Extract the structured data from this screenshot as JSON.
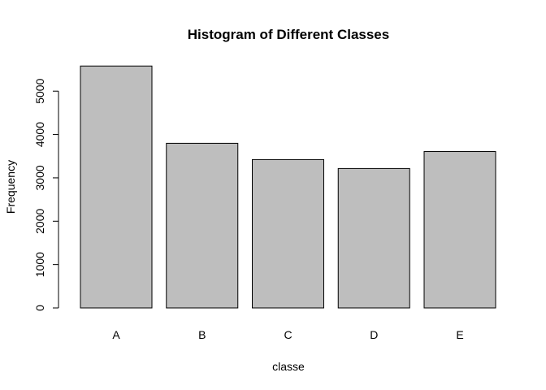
{
  "chart_data": {
    "type": "bar",
    "title": "Histogram of Different Classes",
    "xlabel": "classe",
    "ylabel": "Frequency",
    "categories": [
      "A",
      "B",
      "C",
      "D",
      "E"
    ],
    "values": [
      5580,
      3797,
      3422,
      3216,
      3607
    ],
    "ylim": [
      0,
      5800
    ],
    "yticks": [
      0,
      1000,
      2000,
      3000,
      4000,
      5000
    ],
    "bar_color": "#bebebe",
    "grid": false,
    "legend": "none"
  }
}
